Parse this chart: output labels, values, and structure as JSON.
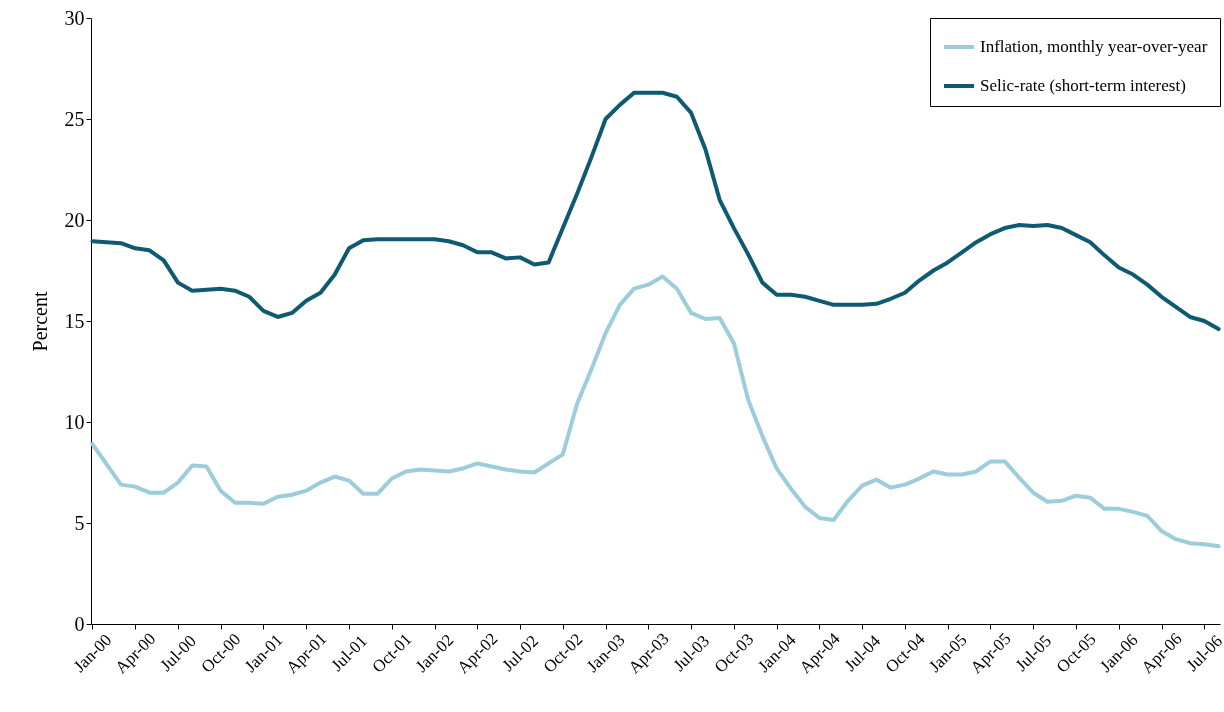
{
  "chart_data": {
    "type": "line",
    "ylabel": "Percent",
    "ylim": [
      0,
      30
    ],
    "yticks": [
      0,
      5,
      10,
      15,
      20,
      25,
      30
    ],
    "grid": false,
    "legend": "top right",
    "line_style": "solid",
    "categories": [
      "Jan-00",
      null,
      null,
      "Apr-00",
      null,
      null,
      "Jul-00",
      null,
      null,
      "Oct-00",
      null,
      null,
      "Jan-01",
      null,
      null,
      "Apr-01",
      null,
      null,
      "Jul-01",
      null,
      null,
      "Oct-01",
      null,
      null,
      "Jan-02",
      null,
      null,
      "Apr-02",
      null,
      null,
      "Jul-02",
      null,
      null,
      "Oct-02",
      null,
      null,
      "Jan-03",
      null,
      null,
      "Apr-03",
      null,
      null,
      "Jul-03",
      null,
      null,
      "Oct-03",
      null,
      null,
      "Jan-04",
      null,
      null,
      "Apr-04",
      null,
      null,
      "Jul-04",
      null,
      null,
      "Oct-04",
      null,
      null,
      "Jan-05",
      null,
      null,
      "Apr-05",
      null,
      null,
      "Jul-05",
      null,
      null,
      "Oct-05",
      null,
      null,
      "Jan-06",
      null,
      null,
      "Apr-06",
      null,
      null,
      "Jul-06",
      null
    ],
    "series": [
      {
        "name": "Inflation, monthly year-over-year",
        "color": "#9ccddb",
        "values": [
          8.9,
          7.9,
          6.9,
          6.8,
          6.5,
          6.5,
          7.0,
          7.85,
          7.8,
          6.6,
          6.0,
          6.0,
          5.95,
          6.3,
          6.4,
          6.6,
          7.0,
          7.3,
          7.1,
          6.45,
          6.45,
          7.2,
          7.55,
          7.65,
          7.6,
          7.55,
          7.7,
          7.95,
          7.8,
          7.65,
          7.55,
          7.5,
          7.95,
          8.4,
          10.9,
          12.6,
          14.4,
          15.8,
          16.6,
          16.8,
          17.2,
          16.6,
          15.4,
          15.1,
          15.15,
          13.9,
          11.1,
          9.3,
          7.7,
          6.7,
          5.8,
          5.25,
          5.15,
          6.1,
          6.85,
          7.15,
          6.75,
          6.9,
          7.2,
          7.55,
          7.4,
          7.4,
          7.55,
          8.05,
          8.05,
          7.25,
          6.5,
          6.05,
          6.1,
          6.35,
          6.25,
          5.7,
          5.7,
          5.55,
          5.35,
          4.6,
          4.2,
          4.0,
          3.95,
          3.85
        ]
      },
      {
        "name": "Selic-rate (short-term interest)",
        "color": "#0d5a72",
        "values": [
          18.95,
          18.9,
          18.85,
          18.6,
          18.5,
          18.0,
          16.9,
          16.5,
          16.55,
          16.6,
          16.5,
          16.2,
          15.5,
          15.2,
          15.4,
          16.0,
          16.4,
          17.3,
          18.6,
          19.0,
          19.05,
          19.05,
          19.05,
          19.05,
          19.05,
          18.95,
          18.75,
          18.4,
          18.4,
          18.1,
          18.15,
          17.8,
          17.9,
          19.6,
          21.3,
          23.1,
          25.0,
          25.7,
          26.3,
          26.3,
          26.3,
          26.1,
          25.3,
          23.5,
          21.0,
          19.6,
          18.3,
          16.9,
          16.3,
          16.3,
          16.2,
          16.0,
          15.8,
          15.8,
          15.8,
          15.85,
          16.1,
          16.4,
          17.0,
          17.5,
          17.9,
          18.4,
          18.9,
          19.3,
          19.6,
          19.75,
          19.7,
          19.75,
          19.6,
          19.25,
          18.9,
          18.25,
          17.65,
          17.3,
          16.8,
          16.2,
          15.7,
          15.2,
          15.0,
          14.6
        ]
      }
    ]
  }
}
